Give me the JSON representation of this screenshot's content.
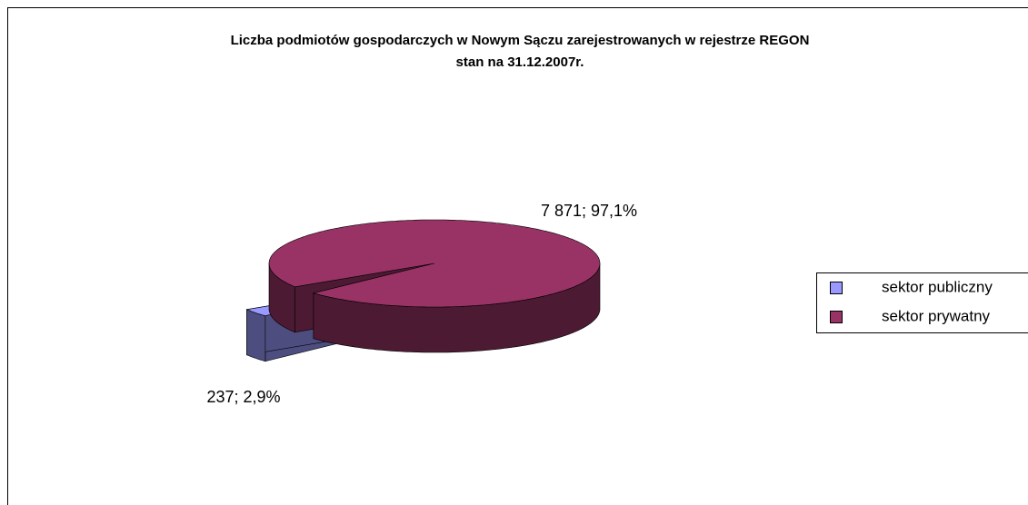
{
  "chart_data": {
    "type": "pie3d",
    "title": "Liczba podmiotów gospodarczych w Nowym Sączu zarejestrowanych w rejestrze REGON",
    "subtitle": "stan na 31.12.2007r.",
    "categories": [
      "sektor publiczny",
      "sektor prywatny"
    ],
    "values": [
      237,
      7871
    ],
    "value_labels": [
      "237; 2,9%",
      "7 871; 97,1%"
    ],
    "colors": [
      "#9999ff",
      "#993366"
    ],
    "legend": "right"
  }
}
